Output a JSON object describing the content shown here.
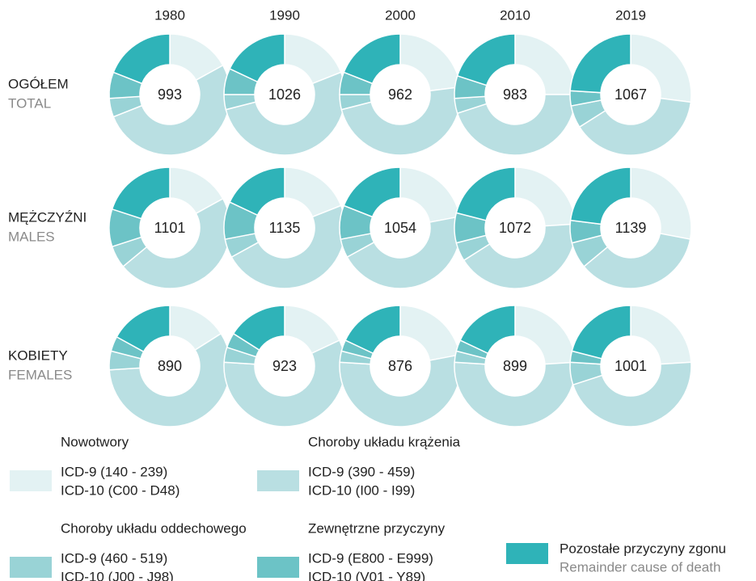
{
  "chart_data": {
    "type": "donut",
    "years": [
      "1980",
      "1990",
      "2000",
      "2010",
      "2019"
    ],
    "rows": [
      {
        "label": "OGÓŁEM",
        "sublabel": "TOTAL",
        "centers": [
          993,
          1026,
          962,
          983,
          1067
        ],
        "shares": [
          [
            17,
            52,
            5,
            7,
            19
          ],
          [
            19,
            52,
            4,
            7,
            18
          ],
          [
            23,
            48,
            4,
            6,
            19
          ],
          [
            25,
            45,
            4,
            6,
            20
          ],
          [
            27,
            39,
            6,
            4,
            24
          ]
        ]
      },
      {
        "label": "MĘŻCZYŹNI",
        "sublabel": "MALES",
        "centers": [
          1101,
          1135,
          1054,
          1072,
          1139
        ],
        "shares": [
          [
            17,
            47,
            6,
            10,
            20
          ],
          [
            19,
            48,
            5,
            10,
            18
          ],
          [
            22,
            45,
            5,
            9,
            19
          ],
          [
            24,
            42,
            5,
            8,
            21
          ],
          [
            28,
            36,
            7,
            6,
            23
          ]
        ]
      },
      {
        "label": "KOBIETY",
        "sublabel": "FEMALES",
        "centers": [
          890,
          923,
          876,
          899,
          1001
        ],
        "shares": [
          [
            16,
            58,
            5,
            4,
            17
          ],
          [
            18,
            58,
            4,
            4,
            16
          ],
          [
            22,
            54,
            3,
            3,
            18
          ],
          [
            24,
            52,
            3,
            3,
            18
          ],
          [
            24,
            46,
            6,
            3,
            21
          ]
        ]
      }
    ],
    "legend": [
      {
        "name": "Nowotwory",
        "color": "#e3f2f3",
        "icd9": "ICD-9 (140 - 239)",
        "icd10": "ICD-10 (C00 - D48)"
      },
      {
        "name": "Choroby układu krążenia",
        "color": "#b9dfe2",
        "icd9": "ICD-9 (390 - 459)",
        "icd10": "ICD-10 (I00 - I99)"
      },
      {
        "name": "Choroby układu oddechowego",
        "color": "#99d3d6",
        "icd9": "ICD-9 (460 - 519)",
        "icd10": "ICD-10 (J00 - J98)"
      },
      {
        "name": "Zewnętrzne przyczyny",
        "color": "#6cc3c6",
        "icd9": "ICD-9 (E800 - E999)",
        "icd10": "ICD-10 (V01 - Y89)"
      },
      {
        "name": "Pozostałe przyczyny zgonu",
        "color": "#2fb3b8",
        "english": "Remainder cause of death"
      }
    ]
  }
}
